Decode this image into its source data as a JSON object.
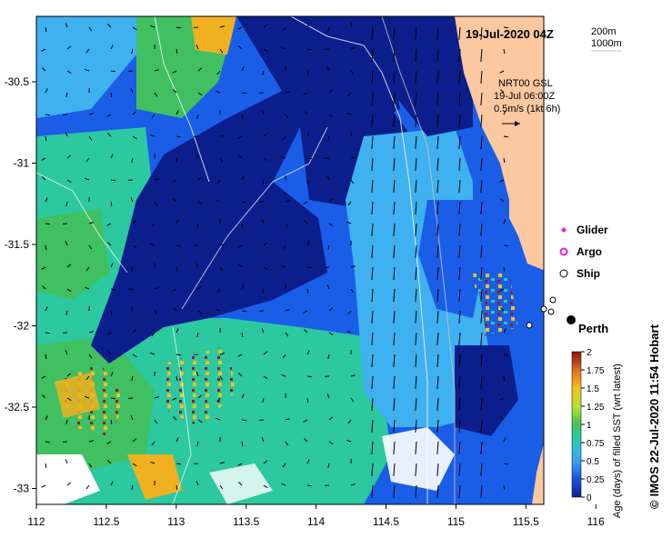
{
  "map": {
    "date_title": "19-Jul-2020 04Z",
    "contours": [
      "200m",
      "1000m"
    ],
    "current_source": [
      "NRT00 GSL",
      "19-Jul 06:00Z",
      "0.5m/s (1kt 6h)"
    ],
    "legend": [
      {
        "label": "Glider",
        "marker": "diamond",
        "color": "#e020e0"
      },
      {
        "label": "Argo",
        "marker": "circle",
        "color": "#e020e0"
      },
      {
        "label": "Ship",
        "marker": "circle",
        "color": "#000000"
      }
    ],
    "city": "Perth",
    "x_ticks": [
      "112",
      "112.5",
      "113",
      "113.5",
      "114",
      "114.5",
      "115",
      "115.5",
      "116"
    ],
    "y_ticks": [
      "-30.5",
      "-31",
      "-31.5",
      "-32",
      "-32.5",
      "-33"
    ],
    "colorbar": {
      "label": "Age (days) of filled SST (wrt latest)",
      "ticks": [
        "2",
        "1.75",
        "1.5",
        "1.25",
        "1",
        "0.75",
        "0.5",
        "0.25",
        "0"
      ]
    },
    "credit_symbol": "©",
    "credit": "IMOS 22-Jul-2020 11:54 Hobart"
  },
  "colors": {
    "land": "#fcc8a0",
    "nodata": "#ffffff",
    "age_0": "#0c1e8c",
    "age_025": "#1a5ee8",
    "age_05": "#3fb0f0",
    "age_075": "#2cc8a0",
    "age_1": "#40c060",
    "age_125": "#b8e030",
    "age_15": "#f0b020",
    "age_2": "#a01818"
  }
}
